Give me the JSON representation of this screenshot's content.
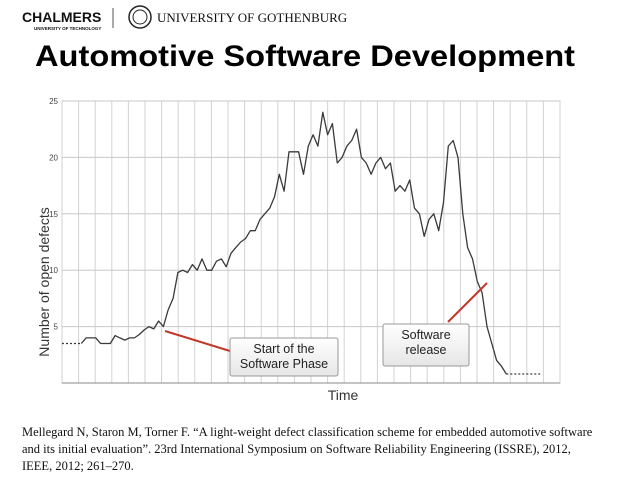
{
  "header": {
    "logo": "CHALMERS",
    "logo_sub": "UNIVERSITY OF TECHNOLOGY",
    "university": "UNIVERSITY OF GOTHENBURG"
  },
  "title": "Automotive Software Development",
  "chart_data": {
    "type": "line",
    "ylabel": "Number of open defects",
    "xlabel": "Time",
    "ylim": [
      0,
      25
    ],
    "yticks": [
      5,
      10,
      15,
      20,
      25
    ],
    "grid": true,
    "categories": [
      null,
      null,
      null,
      null,
      null,
      null,
      null,
      null,
      null,
      null,
      null,
      null,
      null,
      null,
      null,
      null,
      null,
      null,
      null,
      null,
      null,
      null,
      null,
      null,
      null,
      null,
      null,
      null,
      null,
      null,
      null,
      null,
      null,
      null,
      null,
      null,
      null,
      null,
      null,
      null,
      null,
      null,
      null,
      null,
      null,
      null,
      null,
      null,
      null,
      null,
      null,
      null,
      null,
      null,
      null,
      null,
      null,
      null,
      null,
      null,
      null,
      null,
      null,
      null,
      null,
      null,
      null,
      null,
      null,
      null,
      null,
      null,
      null,
      null,
      null,
      null,
      null,
      null,
      null,
      null,
      null,
      null,
      null,
      null,
      null,
      null,
      null,
      null,
      null,
      null,
      null,
      null,
      null,
      null,
      null,
      null,
      null,
      null,
      null,
      null
    ],
    "series": [
      {
        "color": "#3a3a3a",
        "dashed": false,
        "values": [
          null,
          null,
          null,
          null,
          3.5,
          4,
          4,
          4,
          3.5,
          3.5,
          3.5,
          4.2,
          4,
          3.8,
          4,
          4,
          4.3,
          4.7,
          5,
          4.8,
          5.5,
          5,
          6.5,
          7.5,
          9.8,
          10,
          9.8,
          10.5,
          10,
          11,
          10,
          10,
          10.8,
          11,
          10.3,
          11.5,
          12,
          12.5,
          12.8,
          13.5,
          13.5,
          14.5,
          15,
          15.5,
          16.5,
          18.5,
          17,
          20.5,
          20.5,
          20.5,
          18.5,
          21,
          22,
          21,
          24,
          22,
          23,
          19.5,
          20,
          21,
          21.5,
          22.5,
          20,
          19.5,
          18.5,
          19.5,
          20,
          19,
          19.5,
          17,
          17.5,
          17,
          18,
          15.5,
          15,
          13,
          14.5,
          15,
          13.5,
          16,
          21,
          21.5,
          20,
          15,
          12,
          11,
          9,
          8,
          5,
          3.5,
          2,
          1.5,
          0.8,
          null,
          null,
          null,
          null,
          null,
          null,
          null
        ]
      },
      {
        "color": "#3a3a3a",
        "dashed": true,
        "values": [
          3.5,
          3.5,
          3.5,
          3.5,
          3.5,
          null,
          null,
          null,
          null,
          null,
          null,
          null,
          null,
          null,
          null,
          null,
          null,
          null,
          null,
          null,
          null,
          null,
          null,
          null,
          null,
          null,
          null,
          null,
          null,
          null,
          null,
          null,
          null,
          null,
          null,
          null,
          null,
          null,
          null,
          null,
          null,
          null,
          null,
          null,
          null,
          null,
          null,
          null,
          null,
          null,
          null,
          null,
          null,
          null,
          null,
          null,
          null,
          null,
          null,
          null,
          null,
          null,
          null,
          null,
          null,
          null,
          null,
          null,
          null,
          null,
          null,
          null,
          null,
          null,
          null,
          null,
          null,
          null,
          null,
          null,
          null,
          null,
          null,
          null,
          null,
          null,
          null,
          null,
          null,
          null,
          null,
          null,
          0.8,
          0.8,
          0.8,
          0.8,
          0.8,
          0.8,
          0.8,
          0.8
        ]
      }
    ],
    "annotations": [
      {
        "lines": [
          "Start of the",
          "Software Phase"
        ]
      },
      {
        "lines": [
          "Software",
          "release"
        ]
      }
    ]
  },
  "citation": [
    "Mellegard N, Staron M, Torner F. “A light-weight defect classification scheme for embedded automotive software",
    "and its initial evaluation”. 23rd International Symposium on Software Reliability Engineering (ISSRE), 2012,",
    "IEEE, 2012; 261–270."
  ]
}
